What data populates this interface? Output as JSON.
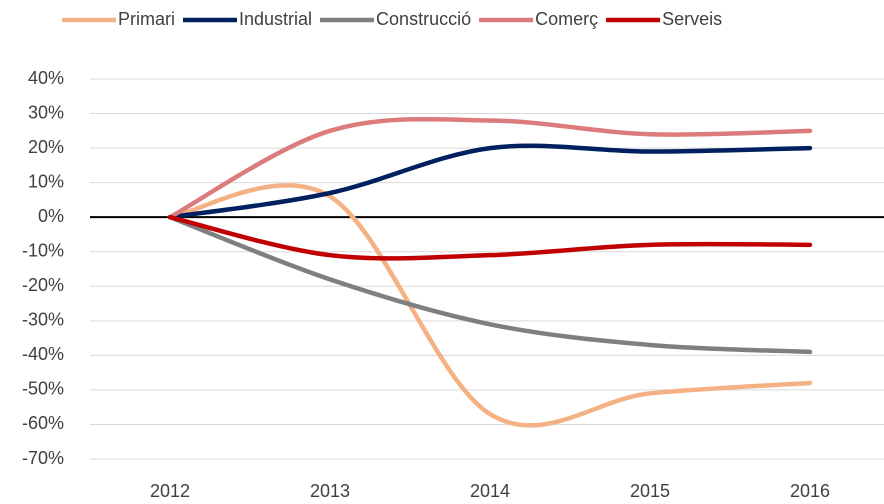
{
  "chart_data": {
    "type": "line",
    "categories": [
      "2012",
      "2013",
      "2014",
      "2015",
      "2016"
    ],
    "series": [
      {
        "name": "Primari",
        "color": "#f4b183",
        "values": [
          0,
          6,
          -57,
          -51,
          -48
        ]
      },
      {
        "name": "Industrial",
        "color": "#002060",
        "values": [
          0,
          7,
          20,
          19,
          20
        ]
      },
      {
        "name": "Construcció",
        "color": "#7f7f7f",
        "values": [
          0,
          -18,
          -31,
          -37,
          -39
        ]
      },
      {
        "name": "Comerç",
        "color": "#dc7b7b",
        "values": [
          0,
          25,
          28,
          24,
          25
        ]
      },
      {
        "name": "Serveis",
        "color": "#c00000",
        "values": [
          0,
          -11,
          -11,
          -8,
          -8
        ]
      }
    ],
    "ylim": [
      -70,
      40
    ],
    "yticks": [
      {
        "value": -70,
        "label": "-70%"
      },
      {
        "value": -60,
        "label": "-60%"
      },
      {
        "value": -50,
        "label": "-50%"
      },
      {
        "value": -40,
        "label": "-40%"
      },
      {
        "value": -30,
        "label": "-30%"
      },
      {
        "value": -20,
        "label": "-20%"
      },
      {
        "value": -10,
        "label": "-10%"
      },
      {
        "value": 0,
        "label": "0%"
      },
      {
        "value": 10,
        "label": "10%"
      },
      {
        "value": 20,
        "label": "20%"
      },
      {
        "value": 30,
        "label": "30%"
      },
      {
        "value": 40,
        "label": "40%"
      }
    ],
    "grid": true,
    "legend": "top"
  }
}
